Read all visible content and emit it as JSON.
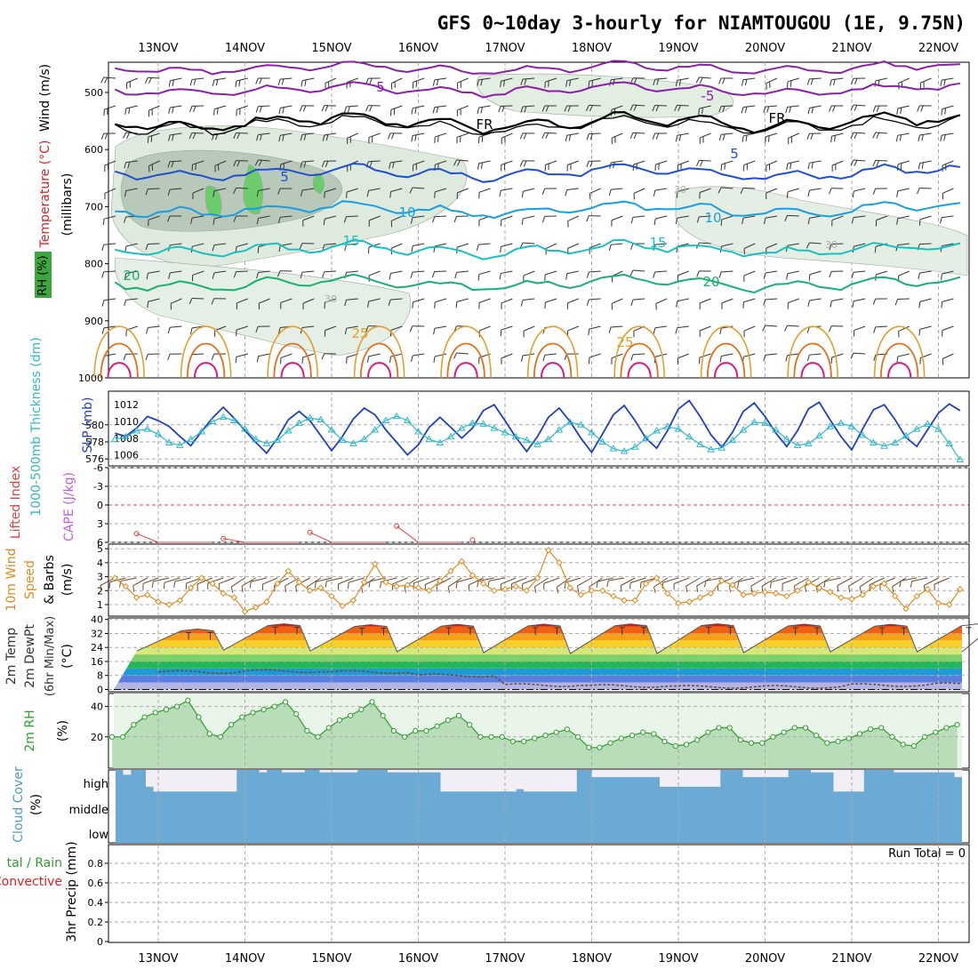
{
  "title": "GFS 0~10day 3-hourly for NIAMTOUGOU (1E, 9.75N)",
  "dates": [
    "13NOV",
    "14NOV",
    "15NOV",
    "16NOV",
    "17NOV",
    "18NOV",
    "19NOV",
    "20NOV",
    "21NOV",
    "22NOV"
  ],
  "colors": {
    "grid": "#aaaaaa",
    "slp": "#1f3fbf",
    "thickness": "#30b8c8",
    "lifted_index": "#e04040",
    "cape": "#c060e0",
    "wind10": "#e08a20",
    "rh": "#2e9e2e",
    "cloud": "#6aaad4",
    "temp_5": "#8a1fa8",
    "temp_fr": "#000000",
    "temp_m5": "#1e4fd0",
    "temp_m10": "#1a9ee0",
    "temp_m15": "#18c0c0",
    "temp_m20": "#18b070",
    "temp_m25": "#e0a030",
    "temp_m30": "#e07020",
    "temp_m35": "#e0187a"
  },
  "panels": {
    "upper_air": {
      "label_wind": "Wind (m/s)",
      "label_temp": "Temperature (°C)",
      "label_rh": "RH (%)",
      "label_mb": "(millibars)",
      "ticks": [
        "500",
        "600",
        "700",
        "800",
        "900",
        "1000"
      ],
      "contour_labels": [
        "5",
        "-5",
        "FR",
        "FR",
        "5",
        "5",
        "10",
        "10",
        "15",
        "15",
        "20",
        "20",
        "25",
        "25",
        "30",
        "30",
        "30"
      ]
    },
    "slp_thickness": {
      "label_thk": "1000-500mb Thickness (dm)",
      "label_slp": "SLP (mb)",
      "ticks_left": [
        "580",
        "578",
        "576"
      ],
      "ticks_right": [
        "1012",
        "1010",
        "1008",
        "1006"
      ]
    },
    "stability": {
      "label_li": "Lifted Index",
      "label_cape": "CAPE (J/kg)",
      "ticks": [
        "-6",
        "-3",
        "0",
        "3",
        "6"
      ]
    },
    "wind10": {
      "label_a": "10m Wind",
      "label_b": "Speed",
      "label_c": "& Barbs",
      "label_unit": "(m/s)",
      "ticks": [
        "5",
        "4",
        "3",
        "2",
        "1"
      ]
    },
    "temp2m": {
      "label_a": "2m Temp",
      "label_b": "2m DewPt",
      "label_c": "(6hr Min/Max)",
      "label_unit": "(°C)",
      "ticks": [
        "40",
        "32",
        "24",
        "16",
        "8",
        "0"
      ]
    },
    "rh2m": {
      "label_a": "2m RH",
      "label_unit": "(%)",
      "ticks": [
        "40",
        "20"
      ]
    },
    "cloud": {
      "label_a": "Cloud Cover",
      "label_unit": "(%)",
      "levels": [
        "high",
        "middle",
        "low"
      ]
    },
    "precip": {
      "label_a": "tal / Rain",
      "label_b": "Convective",
      "label_c": "3hr Precip (mm)",
      "run_total": "Run Total = 0",
      "ticks": [
        "0.8",
        "0.6",
        "0.4",
        "0.2",
        "0"
      ]
    }
  },
  "chart_data": [
    {
      "type": "line",
      "name": "upper-air temperature contours",
      "ylabel": "(millibars)",
      "ylim": [
        1000,
        450
      ],
      "isotherm_levels": [
        5,
        -5,
        0,
        5,
        10,
        15,
        20,
        25,
        30,
        35
      ]
    },
    {
      "type": "line",
      "x": [
        "12NOV12",
        "12NOV15",
        "12NOV18",
        "12NOV21",
        "13NOV00",
        "13NOV03",
        "13NOV06",
        "13NOV09",
        "13NOV12",
        "13NOV15",
        "13NOV18",
        "13NOV21",
        "14NOV00",
        "14NOV03",
        "14NOV06",
        "14NOV09",
        "14NOV12",
        "14NOV15",
        "14NOV18",
        "14NOV21",
        "15NOV00",
        "15NOV03",
        "15NOV06",
        "15NOV09",
        "15NOV12",
        "15NOV15",
        "15NOV18",
        "15NOV21",
        "16NOV00",
        "16NOV03",
        "16NOV06",
        "16NOV09",
        "16NOV12",
        "16NOV15",
        "16NOV18",
        "16NOV21",
        "17NOV00",
        "17NOV03",
        "17NOV06",
        "17NOV09",
        "17NOV12",
        "17NOV15",
        "17NOV18",
        "17NOV21",
        "18NOV00",
        "18NOV03",
        "18NOV06",
        "18NOV09",
        "18NOV12",
        "18NOV15",
        "18NOV18",
        "18NOV21",
        "19NOV00",
        "19NOV03",
        "19NOV06",
        "19NOV09",
        "19NOV12",
        "19NOV15",
        "19NOV18",
        "19NOV21",
        "20NOV00",
        "20NOV03",
        "20NOV06",
        "20NOV09",
        "20NOV12",
        "20NOV15",
        "20NOV18",
        "20NOV21",
        "21NOV00",
        "21NOV03",
        "21NOV06",
        "21NOV09",
        "21NOV12",
        "21NOV15",
        "21NOV18",
        "21NOV21",
        "22NOV00",
        "22NOV03",
        "22NOV06"
      ],
      "series": [
        {
          "name": "SLP (mb)",
          "axis": "right",
          "values": [
            1008.6,
            1008.2,
            1009.2,
            1010.6,
            1010.1,
            1009.4,
            1008.2,
            1007.1,
            1008.8,
            1010.4,
            1011.7,
            1010.4,
            1008.9,
            1007.5,
            1006.2,
            1008.0,
            1010.2,
            1011.2,
            1010.1,
            1008.3,
            1006.5,
            1008.2,
            1010.3,
            1011.6,
            1010.8,
            1009.0,
            1007.5,
            1006.0,
            1007.2,
            1009.3,
            1010.5,
            1009.3,
            1008.0,
            1009.2,
            1011.3,
            1012.0,
            1010.1,
            1008.1,
            1006.4,
            1008.2,
            1010.5,
            1011.6,
            1010.0,
            1008.0,
            1006.3,
            1008.5,
            1010.8,
            1011.9,
            1010.1,
            1008.0,
            1006.8,
            1008.9,
            1011.5,
            1012.5,
            1010.6,
            1008.4,
            1006.9,
            1008.7,
            1011.2,
            1012.2,
            1010.6,
            1008.6,
            1007.0,
            1008.9,
            1011.5,
            1012.3,
            1010.2,
            1008.2,
            1006.6,
            1009.1,
            1011.4,
            1012.0,
            1010.2,
            1008.1,
            1007.0,
            1009.0,
            1011.0,
            1012.1,
            1011.3
          ]
        },
        {
          "name": "1000-500mb Thickness (dm)",
          "axis": "left",
          "values": [
            578.3,
            578.6,
            579.3,
            579.5,
            578.9,
            577.9,
            577.6,
            578.3,
            579.2,
            580.4,
            580.9,
            580.5,
            579.5,
            578.3,
            577.8,
            578.2,
            579.3,
            580.2,
            580.8,
            580.6,
            579.4,
            578.2,
            577.8,
            578.3,
            579.4,
            580.5,
            581.0,
            580.5,
            579.2,
            578.3,
            577.9,
            578.6,
            579.6,
            580.2,
            580.1,
            579.6,
            579.1,
            578.6,
            578.2,
            577.7,
            578.3,
            579.4,
            580.3,
            580.0,
            579.1,
            578.0,
            577.2,
            576.9,
            577.4,
            578.4,
            579.3,
            579.8,
            579.5,
            578.6,
            577.7,
            577.1,
            577.3,
            578.2,
            579.4,
            580.3,
            580.2,
            579.4,
            578.3,
            577.6,
            577.8,
            578.7,
            579.8,
            580.2,
            579.8,
            578.8,
            577.9,
            577.5,
            577.9,
            578.7,
            579.5,
            580.1,
            579.5,
            577.8,
            575.9
          ]
        }
      ]
    },
    {
      "type": "line",
      "name": "Lifted Index / CAPE",
      "ylim": [
        6,
        -6
      ],
      "series": [
        {
          "name": "Lifted Index",
          "points": [
            [
              "12NOV18",
              4.6
            ],
            [
              "13NOV00",
              6.0
            ],
            [
              "13NOV15",
              6.0
            ],
            [
              "13NOV18",
              5.4
            ],
            [
              "14NOV00",
              6.0
            ],
            [
              "14NOV15",
              6.0
            ],
            [
              "14NOV18",
              4.4
            ],
            [
              "15NOV00",
              6.0
            ],
            [
              "15NOV15",
              6.0
            ],
            [
              "15NOV18",
              3.4
            ],
            [
              "16NOV00",
              6.0
            ],
            [
              "16NOV12",
              6.0
            ],
            [
              "16NOV15",
              5.6
            ],
            [
              "16NOV21",
              6.0
            ]
          ]
        }
      ]
    },
    {
      "type": "line",
      "ylabel": "(m/s)",
      "ylim": [
        0,
        5.3
      ],
      "series": [
        {
          "name": "10m Wind Speed",
          "values": [
            2.9,
            2.3,
            1.5,
            1.7,
            1.2,
            1.0,
            1.3,
            2.2,
            2.9,
            2.5,
            1.8,
            1.5,
            0.5,
            0.8,
            1.2,
            2.5,
            3.4,
            2.6,
            2.0,
            2.2,
            1.6,
            0.9,
            1.3,
            2.6,
            3.9,
            2.6,
            2.3,
            2.4,
            2.2,
            2.0,
            2.7,
            3.4,
            4.1,
            3.1,
            2.5,
            2.0,
            2.1,
            2.3,
            2.0,
            2.9,
            4.9,
            4.0,
            2.2,
            1.7,
            2.0,
            2.0,
            1.6,
            1.3,
            1.3,
            2.5,
            2.9,
            1.8,
            1.1,
            1.2,
            1.5,
            1.8,
            2.7,
            2.4,
            1.7,
            1.8,
            1.9,
            1.8,
            1.6,
            2.0,
            2.6,
            2.2,
            1.9,
            1.5,
            1.4,
            1.7,
            2.3,
            2.5,
            1.6,
            0.7,
            1.6,
            2.1,
            1.1,
            1.0,
            2.1
          ]
        }
      ]
    },
    {
      "type": "area",
      "ylabel": "(°C)",
      "ylim": [
        -2,
        42
      ],
      "series": [
        {
          "name": "2m Temp (6hr Max)",
          "values": [
            34.5,
            37.5,
            37.0,
            37.2,
            37.3,
            37.4,
            37.5,
            37.3,
            37.2,
            37.4
          ]
        },
        {
          "name": "2m Temp (6hr Min)",
          "values": [
            22.0,
            22.5,
            22.0,
            21.5,
            21.0,
            20.5,
            20.5,
            21.0,
            21.5,
            21.5
          ]
        },
        {
          "name": "2m DewPt",
          "values": [
            10.0,
            10.5,
            10.0,
            8.0,
            2.5,
            2.0,
            1.5,
            1.5,
            2.5,
            3.0
          ]
        }
      ]
    },
    {
      "type": "area",
      "ylabel": "(%)",
      "ylim": [
        0,
        46
      ],
      "series": [
        {
          "name": "2m RH",
          "values": [
            20,
            20,
            28,
            33,
            36,
            38,
            40,
            44,
            33,
            22,
            20,
            28,
            33,
            36,
            38,
            40,
            43,
            35,
            24,
            20,
            26,
            31,
            34,
            38,
            43,
            34,
            24,
            20,
            24,
            24,
            27,
            31,
            34,
            28,
            20,
            20,
            20,
            17,
            17,
            19,
            21,
            23,
            25,
            20,
            13,
            13,
            16,
            19,
            21,
            23,
            22,
            17,
            14,
            15,
            18,
            23,
            26,
            26,
            18,
            16,
            16,
            20,
            23,
            26,
            26,
            21,
            16,
            17,
            19,
            22,
            25,
            26,
            20,
            15,
            14,
            20,
            23,
            26,
            28,
            29
          ]
        }
      ]
    },
    {
      "type": "area",
      "name": "Cloud Cover",
      "ylabel": "(%)",
      "series": [
        {
          "name": "high cloud clear fraction",
          "values": [
            0,
            20,
            0,
            0,
            70,
            90,
            90,
            90,
            90,
            90,
            90,
            90,
            90,
            90,
            90,
            90,
            0,
            0,
            0,
            10,
            0,
            0,
            10,
            10,
            10,
            0,
            0,
            10,
            10,
            10,
            10,
            10,
            0,
            0,
            0,
            0,
            10,
            10,
            10,
            10,
            10,
            10,
            10,
            90,
            90,
            90,
            90,
            90,
            90,
            90,
            90,
            90,
            90,
            80,
            90,
            90,
            90,
            90,
            90,
            90,
            90,
            0,
            0,
            30,
            30,
            30,
            30,
            30,
            30,
            30,
            30,
            30,
            70,
            70,
            70,
            70,
            70,
            70,
            70,
            70,
            0,
            0,
            0,
            30,
            30,
            30,
            30,
            30,
            30,
            0,
            0,
            0,
            10,
            10,
            10,
            90,
            90,
            90,
            90,
            0,
            0,
            0,
            0,
            10,
            10,
            10,
            10,
            10,
            10,
            10,
            10,
            30
          ]
        }
      ]
    },
    {
      "type": "bar",
      "name": "3hr Precip (mm)",
      "ylim": [
        0,
        1
      ],
      "values": [
        0,
        0,
        0,
        0,
        0,
        0,
        0,
        0,
        0,
        0
      ]
    }
  ]
}
